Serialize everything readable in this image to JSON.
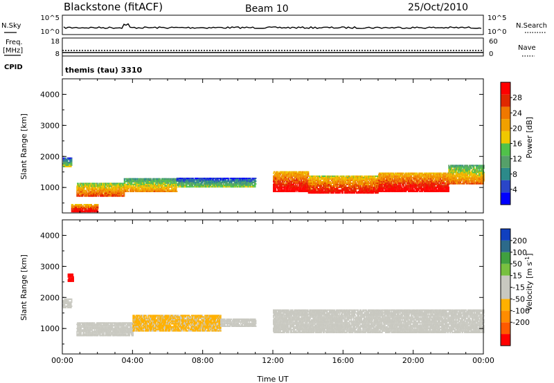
{
  "header": {
    "station": "Blackstone (fitACF)",
    "beam": "Beam 10",
    "date": "25/Oct/2010"
  },
  "panels": {
    "sky": {
      "left_label": "N.Sky",
      "left_ticks": [
        "10^5",
        "10^0"
      ],
      "right_label": "N.Search",
      "right_ticks": [
        "10^5",
        "10^0"
      ]
    },
    "freq": {
      "left_label_1": "Freq.",
      "left_label_2": "[MHz]",
      "left_ticks": [
        "18",
        "8"
      ],
      "right_label": "Nave",
      "right_ticks": [
        "60",
        "0"
      ]
    },
    "cpid": {
      "label": "CPID",
      "text": "themis (tau) 3310"
    }
  },
  "axes": {
    "y_label": "Slant Range [km]",
    "y_ticks": [
      "1000",
      "2000",
      "3000",
      "4000"
    ],
    "x_ticks": [
      "00:00",
      "04:00",
      "08:00",
      "12:00",
      "16:00",
      "20:00",
      "00:00"
    ],
    "x_label": "Time UT"
  },
  "colors": {
    "power": [
      "#0000ff",
      "#2a46c8",
      "#2c8a8a",
      "#55a069",
      "#50c24a",
      "#f0c800",
      "#f0a000",
      "#f07800",
      "#e02800",
      "#ff0000"
    ],
    "velocity": [
      "#ff0000",
      "#ff5a00",
      "#ff8c00",
      "#ffb000",
      "#c8c8c0",
      "#c8c8c0",
      "#78c040",
      "#40a040",
      "#2c6a8a",
      "#1040c0"
    ]
  },
  "chart_data": [
    {
      "type": "heatmap",
      "title": "",
      "xlabel": "",
      "ylabel": "Slant Range [km]",
      "x_range_hours": [
        0,
        24
      ],
      "ylim": [
        180,
        4500
      ],
      "colorbar": {
        "label": "Power [dB]",
        "ticks": [
          "4",
          "8",
          "12",
          "16",
          "20",
          "24",
          "28"
        ],
        "range": [
          0,
          32
        ]
      },
      "echo_bands": [
        {
          "t_start": 0.0,
          "t_end": 0.5,
          "range_low": 1650,
          "range_high": 1950,
          "value": 10
        },
        {
          "t_start": 0.8,
          "t_end": 3.5,
          "range_low": 700,
          "range_high": 1150,
          "value": 20
        },
        {
          "t_start": 3.5,
          "t_end": 6.5,
          "range_low": 850,
          "range_high": 1300,
          "value": 16
        },
        {
          "t_start": 6.5,
          "t_end": 11.0,
          "range_low": 1000,
          "range_high": 1300,
          "value": 9
        },
        {
          "t_start": 12.0,
          "t_end": 14.0,
          "range_low": 850,
          "range_high": 1500,
          "value": 26
        },
        {
          "t_start": 14.0,
          "t_end": 18.0,
          "range_low": 800,
          "range_high": 1350,
          "value": 24
        },
        {
          "t_start": 18.0,
          "t_end": 22.0,
          "range_low": 850,
          "range_high": 1450,
          "value": 26
        },
        {
          "t_start": 22.0,
          "t_end": 24.0,
          "range_low": 1100,
          "range_high": 1700,
          "value": 18
        },
        {
          "t_start": 0.5,
          "t_end": 2.0,
          "range_low": 200,
          "range_high": 450,
          "value": 25
        }
      ]
    },
    {
      "type": "heatmap",
      "title": "",
      "xlabel": "Time UT",
      "ylabel": "Slant Range [km]",
      "x_range_hours": [
        0,
        24
      ],
      "ylim": [
        180,
        4500
      ],
      "colorbar": {
        "label": "Velocity [m s^-1]",
        "ticks": [
          "200",
          "100",
          "50",
          "15",
          "-15",
          "-50",
          "-100",
          "-200"
        ],
        "range": [
          -250,
          250
        ]
      },
      "echo_bands": [
        {
          "t_start": 0.0,
          "t_end": 0.5,
          "range_low": 1650,
          "range_high": 1950,
          "value": 0
        },
        {
          "t_start": 0.8,
          "t_end": 4.0,
          "range_low": 750,
          "range_high": 1200,
          "value": 0
        },
        {
          "t_start": 4.0,
          "t_end": 9.0,
          "range_low": 900,
          "range_high": 1400,
          "value": -60
        },
        {
          "t_start": 9.0,
          "t_end": 11.0,
          "range_low": 1050,
          "range_high": 1300,
          "value": 0
        },
        {
          "t_start": 12.0,
          "t_end": 24.0,
          "range_low": 850,
          "range_high": 1600,
          "value": 0
        },
        {
          "t_start": 0.3,
          "t_end": 0.6,
          "range_low": 2500,
          "range_high": 2750,
          "value": -220
        }
      ]
    }
  ]
}
